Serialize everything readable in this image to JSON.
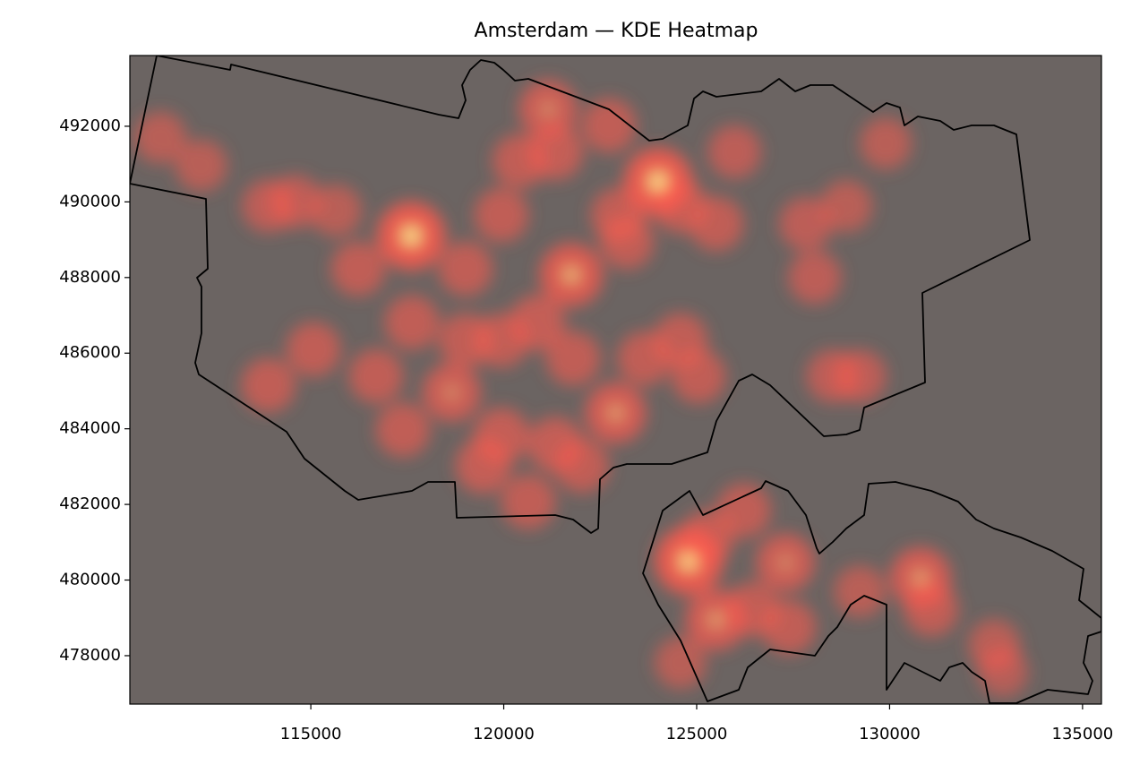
{
  "chart_data": {
    "type": "heatmap",
    "title": "Amsterdam — KDE Heatmap",
    "xlim": [
      110310,
      135490
    ],
    "ylim": [
      476720,
      493870
    ],
    "xticks": [
      115000,
      120000,
      125000,
      130000,
      135000
    ],
    "yticks": [
      478000,
      480000,
      482000,
      484000,
      486000,
      488000,
      490000,
      492000
    ],
    "background": "#6b6462",
    "color": "#ff5a4e",
    "peak_color": "#ffff9a",
    "x": [
      117600,
      124000,
      121750,
      124800,
      122900,
      125500,
      130800,
      121150,
      127300,
      118650,
      111100,
      112160,
      113900,
      114600,
      115650,
      113900,
      115070,
      116690,
      117390,
      116230,
      119010,
      119940,
      120410,
      121340,
      122730,
      122960,
      123190,
      124580,
      125980,
      125510,
      127830,
      128060,
      129900,
      128880,
      119940,
      120870,
      121800,
      123650,
      124580,
      125050,
      119940,
      121340,
      119470,
      120640,
      128530,
      129230,
      126220,
      126450,
      127390,
      125280,
      129230,
      131080,
      132710,
      132940,
      119010,
      117620,
      122030,
      124580
    ],
    "y": [
      489100,
      490530,
      488070,
      480510,
      484420,
      478950,
      480060,
      492450,
      480460,
      484960,
      491700,
      490960,
      489890,
      490010,
      489770,
      485150,
      486100,
      485390,
      483970,
      488230,
      488230,
      489650,
      491080,
      491320,
      492020,
      489650,
      488940,
      489890,
      491320,
      489420,
      489420,
      488000,
      491550,
      489890,
      486340,
      486810,
      485860,
      485860,
      486340,
      485390,
      483820,
      483580,
      483020,
      482070,
      485390,
      485390,
      481840,
      479230,
      478760,
      481130,
      479700,
      479230,
      478280,
      477570,
      486340,
      486810,
      483020,
      477810
    ],
    "values": [
      1.0,
      1.0,
      0.8,
      1.0,
      0.7,
      0.7,
      0.7,
      0.6,
      0.6,
      0.6,
      0.35,
      0.35,
      0.4,
      0.4,
      0.35,
      0.45,
      0.45,
      0.45,
      0.45,
      0.45,
      0.45,
      0.45,
      0.45,
      0.5,
      0.45,
      0.45,
      0.45,
      0.45,
      0.4,
      0.45,
      0.4,
      0.4,
      0.35,
      0.35,
      0.45,
      0.5,
      0.45,
      0.45,
      0.45,
      0.45,
      0.5,
      0.5,
      0.5,
      0.45,
      0.4,
      0.4,
      0.45,
      0.45,
      0.45,
      0.45,
      0.35,
      0.45,
      0.35,
      0.3,
      0.45,
      0.45,
      0.45,
      0.35
    ]
  }
}
